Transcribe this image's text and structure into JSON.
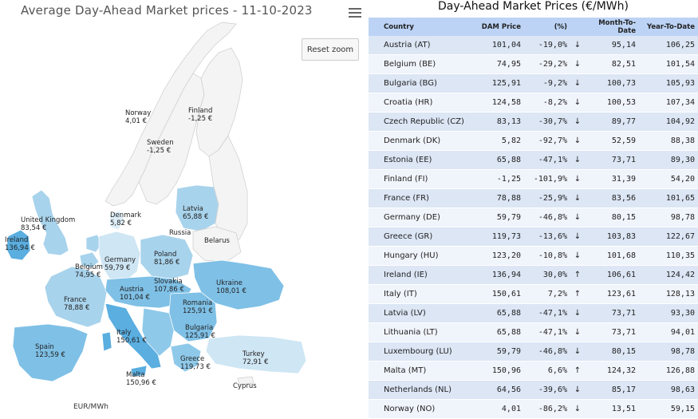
{
  "map": {
    "title": "Average Day-Ahead Market prices - 11-10-2023",
    "reset_zoom_label": "Reset zoom",
    "unit_label": "EUR/MWh",
    "menu_icon": "hamburger-menu-icon",
    "unpriced_labels": {
      "russia": "Russia",
      "belarus": "Belarus",
      "cyprus": "Cyprus"
    }
  },
  "chart_data": [
    {
      "type": "map",
      "title": "Average Day-Ahead Market prices - 11-10-2023",
      "unit": "EUR/MWh",
      "regions": [
        {
          "name": "Norway",
          "value": "4,01 €"
        },
        {
          "name": "Finland",
          "value": "-1,25 €"
        },
        {
          "name": "Sweden",
          "value": "-1,25 €"
        },
        {
          "name": "United Kingdom",
          "value": "83,54 €"
        },
        {
          "name": "Ireland",
          "value": "136,94 €"
        },
        {
          "name": "Denmark",
          "value": "5,82 €"
        },
        {
          "name": "Latvia",
          "value": "65,88 €"
        },
        {
          "name": "Belgium",
          "value": "74,95 €"
        },
        {
          "name": "Germany",
          "value": "59,79 €"
        },
        {
          "name": "Poland",
          "value": "81,86 €"
        },
        {
          "name": "Slovakia",
          "value": "107,86 €"
        },
        {
          "name": "Ukraine",
          "value": "108,01 €"
        },
        {
          "name": "France",
          "value": "78,88 €"
        },
        {
          "name": "Austria",
          "value": "101,04 €"
        },
        {
          "name": "Romania",
          "value": "125,91 €"
        },
        {
          "name": "Bulgaria",
          "value": "125,91 €"
        },
        {
          "name": "Italy",
          "value": "150,61 €"
        },
        {
          "name": "Spain",
          "value": "123,59 €"
        },
        {
          "name": "Greece",
          "value": "119,73 €"
        },
        {
          "name": "Turkey",
          "value": "72,91 €"
        },
        {
          "name": "Malta",
          "value": "150,96 €"
        }
      ]
    },
    {
      "type": "table",
      "title": "Day-Ahead Market Prices (€/MWh)",
      "columns": [
        "Country",
        "DAM Price",
        "(%)",
        "Month-To-Date",
        "Year-To-Date"
      ],
      "rows": [
        {
          "country": "Austria (AT)",
          "dam": "101,04",
          "pct": "-19,0%",
          "dir": "down",
          "mtd": "95,14",
          "ytd": "106,25"
        },
        {
          "country": "Belgium (BE)",
          "dam": "74,95",
          "pct": "-29,2%",
          "dir": "down",
          "mtd": "82,51",
          "ytd": "101,54"
        },
        {
          "country": "Bulgaria (BG)",
          "dam": "125,91",
          "pct": "-9,2%",
          "dir": "down",
          "mtd": "100,73",
          "ytd": "105,93"
        },
        {
          "country": "Croatia (HR)",
          "dam": "124,58",
          "pct": "-8,2%",
          "dir": "down",
          "mtd": "100,53",
          "ytd": "107,34"
        },
        {
          "country": "Czech Republic (CZ)",
          "dam": "83,13",
          "pct": "-30,7%",
          "dir": "down",
          "mtd": "89,77",
          "ytd": "104,92"
        },
        {
          "country": "Denmark (DK)",
          "dam": "5,82",
          "pct": "-92,7%",
          "dir": "down",
          "mtd": "52,59",
          "ytd": "88,38"
        },
        {
          "country": "Estonia (EE)",
          "dam": "65,88",
          "pct": "-47,1%",
          "dir": "down",
          "mtd": "73,71",
          "ytd": "89,30"
        },
        {
          "country": "Finland (FI)",
          "dam": "-1,25",
          "pct": "-101,9%",
          "dir": "down",
          "mtd": "31,39",
          "ytd": "54,20"
        },
        {
          "country": "France (FR)",
          "dam": "78,88",
          "pct": "-25,9%",
          "dir": "down",
          "mtd": "83,56",
          "ytd": "101,65"
        },
        {
          "country": "Germany (DE)",
          "dam": "59,79",
          "pct": "-46,8%",
          "dir": "down",
          "mtd": "80,15",
          "ytd": "98,78"
        },
        {
          "country": "Greece (GR)",
          "dam": "119,73",
          "pct": "-13,6%",
          "dir": "down",
          "mtd": "103,83",
          "ytd": "122,67"
        },
        {
          "country": "Hungary (HU)",
          "dam": "123,20",
          "pct": "-10,8%",
          "dir": "down",
          "mtd": "101,68",
          "ytd": "110,35"
        },
        {
          "country": "Ireland (IE)",
          "dam": "136,94",
          "pct": "30,0%",
          "dir": "up",
          "mtd": "106,61",
          "ytd": "124,42"
        },
        {
          "country": "Italy (IT)",
          "dam": "150,61",
          "pct": "7,2%",
          "dir": "up",
          "mtd": "123,61",
          "ytd": "128,13"
        },
        {
          "country": "Latvia (LV)",
          "dam": "65,88",
          "pct": "-47,1%",
          "dir": "down",
          "mtd": "73,71",
          "ytd": "93,30"
        },
        {
          "country": "Lithuania (LT)",
          "dam": "65,88",
          "pct": "-47,1%",
          "dir": "down",
          "mtd": "73,71",
          "ytd": "94,01"
        },
        {
          "country": "Luxembourg (LU)",
          "dam": "59,79",
          "pct": "-46,8%",
          "dir": "down",
          "mtd": "80,15",
          "ytd": "98,78"
        },
        {
          "country": "Malta (MT)",
          "dam": "150,96",
          "pct": "6,6%",
          "dir": "up",
          "mtd": "124,32",
          "ytd": "126,88"
        },
        {
          "country": "Netherlands (NL)",
          "dam": "64,56",
          "pct": "-39,6%",
          "dir": "down",
          "mtd": "85,17",
          "ytd": "98,63"
        },
        {
          "country": "Norway (NO)",
          "dam": "4,01",
          "pct": "-86,2%",
          "dir": "down",
          "mtd": "13,51",
          "ytd": "59,15"
        }
      ]
    }
  ],
  "colors": {
    "header_bg": "#bcd3f5",
    "row_odd": "#dce6f5",
    "row_even": "#f0f4fb",
    "negative": "#d43a3a",
    "positive": "#1f8a3b",
    "map_unpriced": "#f4f4f4",
    "map_low": "#ddeef8",
    "map_mid": "#a8d3ec",
    "map_high": "#5aaee0"
  }
}
